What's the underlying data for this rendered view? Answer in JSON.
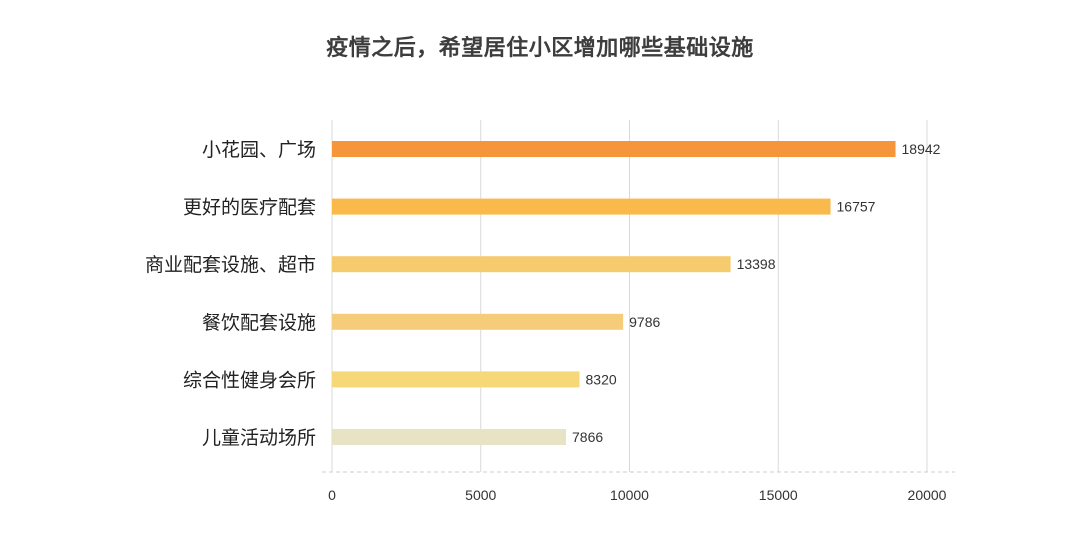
{
  "chart_data": {
    "type": "bar",
    "orientation": "horizontal",
    "title": "疫情之后，希望居住小区增加哪些基础设施",
    "categories": [
      "小花园、广场",
      "更好的医疗配套",
      "商业配套设施、超市",
      "餐饮配套设施",
      "综合性健身会所",
      "儿童活动场所"
    ],
    "values": [
      18942,
      16757,
      13398,
      9786,
      8320,
      7866
    ],
    "bar_colors": [
      "#f5963a",
      "#f9b94b",
      "#f5cb6e",
      "#f5cd7a",
      "#f6d878",
      "#e8e3c4"
    ],
    "xlim": [
      0,
      20000
    ],
    "xticks": [
      "0",
      "5000",
      "10000",
      "15000",
      "20000"
    ],
    "grid": "vertical",
    "xlabel": "",
    "ylabel": ""
  }
}
